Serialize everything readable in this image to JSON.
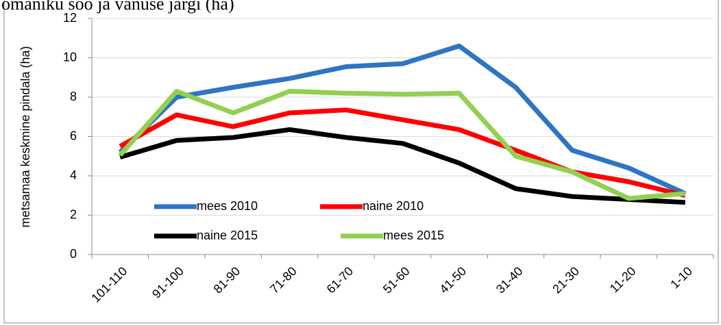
{
  "chart_data": {
    "type": "line",
    "title": "omaniku soo ja vanuse järgi (ha)",
    "y_label": "metsamaa keskmine pindala (ha)",
    "categories": [
      "101-110",
      "91-100",
      "81-90",
      "71-80",
      "61-70",
      "51-60",
      "41-50",
      "31-40",
      "21-30",
      "11-20",
      "1-10"
    ],
    "series": [
      {
        "name": "mees 2010",
        "color": "#2e75c2",
        "values": [
          5.2,
          8.0,
          8.5,
          8.95,
          9.55,
          9.7,
          10.6,
          8.5,
          5.3,
          4.4,
          3.1
        ]
      },
      {
        "name": "naine 2010",
        "color": "#ff0000",
        "values": [
          5.5,
          7.1,
          6.5,
          7.2,
          7.35,
          6.85,
          6.35,
          5.3,
          4.2,
          3.7,
          3.0
        ]
      },
      {
        "name": "naine 2015",
        "color": "#000000",
        "values": [
          4.95,
          5.8,
          5.95,
          6.35,
          5.95,
          5.65,
          4.65,
          3.35,
          2.95,
          2.8,
          2.65
        ]
      },
      {
        "name": "mees 2015",
        "color": "#92d050",
        "values": [
          5.05,
          8.3,
          7.2,
          8.3,
          8.2,
          8.15,
          8.2,
          5.0,
          4.2,
          2.85,
          3.1
        ]
      }
    ],
    "ylim": [
      0,
      12
    ],
    "yticks": [
      0,
      2,
      4,
      6,
      8,
      10,
      12
    ],
    "grid": true
  }
}
